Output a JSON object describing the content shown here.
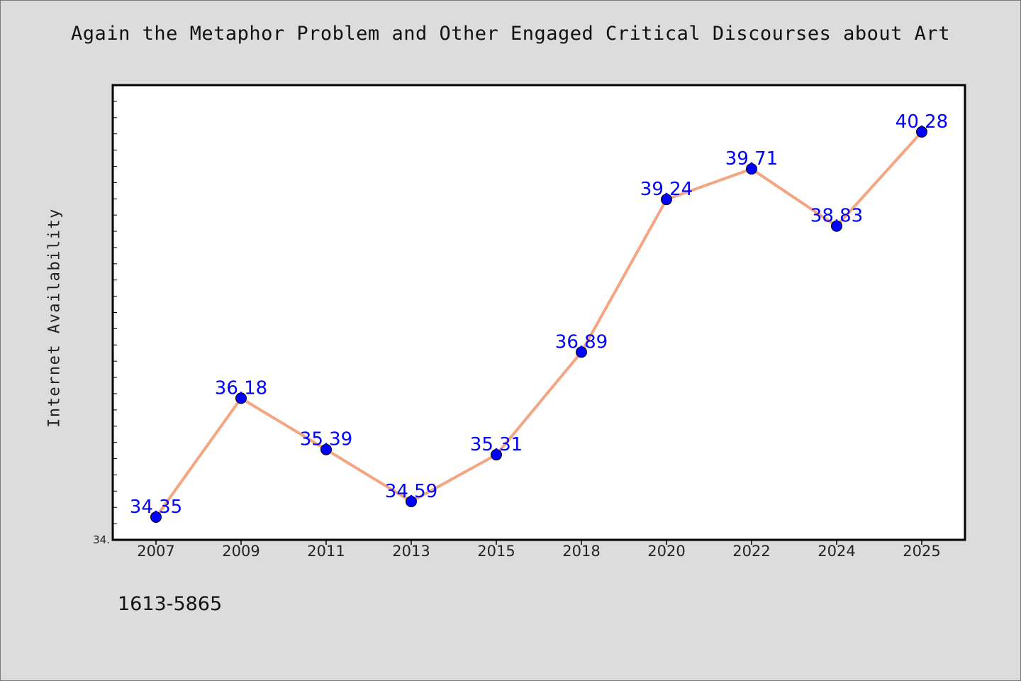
{
  "chart_data": {
    "type": "line",
    "title": "Again the Metaphor Problem and Other Engaged Critical Discourses about Art",
    "xlabel": "",
    "ylabel": "Internet Availability",
    "categories": [
      "2007",
      "2009",
      "2011",
      "2013",
      "2015",
      "2018",
      "2020",
      "2022",
      "2024",
      "2025"
    ],
    "series": [
      {
        "values": [
          34.35,
          36.18,
          35.39,
          34.59,
          35.31,
          36.89,
          39.24,
          39.71,
          38.83,
          40.28
        ],
        "labels": [
          "34.35",
          "36.18",
          "35.39",
          "34.59",
          "35.31",
          "36.89",
          "39.24",
          "39.71",
          "38.83",
          "40.28"
        ]
      }
    ],
    "ylim": [
      34.0,
      41.0
    ],
    "y_tick_labels_shown": [
      "34."
    ],
    "grid": false,
    "colors": {
      "line": "#f4a582",
      "marker": "#0000ff",
      "data_label": "#0000ff",
      "plot_background": "#ffffff",
      "page_background": "#dcdcdc"
    }
  },
  "footnote": "1613-5865"
}
